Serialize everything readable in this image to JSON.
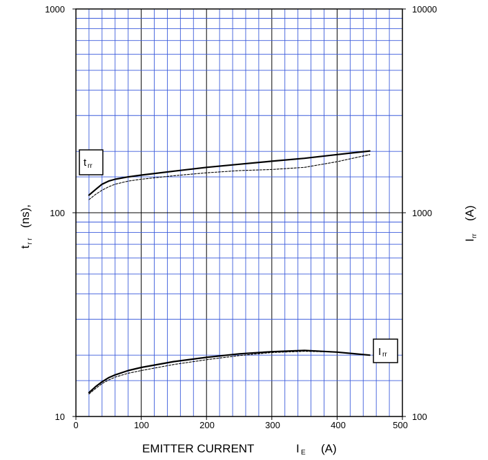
{
  "chart_data": {
    "type": "line",
    "title": "",
    "x_axis": {
      "label_main": "EMITTER CURRENT",
      "label_symbol": "I",
      "label_subscript": "E",
      "label_unit": "(A)",
      "range": [
        0,
        500
      ],
      "ticks": [
        "0",
        "100",
        "200",
        "300",
        "400",
        "500"
      ]
    },
    "y_left": {
      "label_symbol": "t",
      "label_subscript": "r r",
      "label_unit": "(ns),",
      "scale": "log",
      "range": [
        10,
        1000
      ],
      "ticks": [
        "10",
        "100",
        "1000"
      ]
    },
    "y_right": {
      "label_symbol": "I",
      "label_subscript": "rr",
      "label_unit": "(A)",
      "scale": "log",
      "range": [
        100,
        10000
      ],
      "ticks": [
        "100",
        "1000",
        "10000"
      ]
    },
    "grid": true,
    "grid_colors": {
      "major": "#000000",
      "minor": "#3b5bdb"
    },
    "annotations": {
      "trr": {
        "main": "t",
        "sub": "rr"
      },
      "irr": {
        "main": "I",
        "sub": "rr"
      }
    },
    "series": [
      {
        "axis": "left",
        "style": "solid",
        "x": [
          20,
          30,
          40,
          50,
          60,
          80,
          100,
          150,
          200,
          250,
          300,
          350,
          400,
          450
        ],
        "y": [
          122,
          130,
          138,
          143,
          146,
          150,
          153,
          160,
          167,
          173,
          179,
          185,
          193,
          201
        ]
      },
      {
        "axis": "left",
        "style": "dashed",
        "x": [
          20,
          30,
          40,
          50,
          60,
          80,
          100,
          150,
          200,
          250,
          300,
          350,
          400,
          450
        ],
        "y": [
          116,
          123,
          129,
          134,
          138,
          143,
          146,
          152,
          157,
          161,
          163,
          167,
          178,
          193
        ]
      },
      {
        "axis": "right",
        "style": "solid",
        "x": [
          20,
          30,
          40,
          50,
          60,
          80,
          100,
          150,
          200,
          250,
          300,
          350,
          400,
          450
        ],
        "y": [
          131,
          140,
          148,
          155,
          160,
          168,
          174,
          186,
          195,
          203,
          208,
          211,
          207,
          200
        ]
      },
      {
        "axis": "right",
        "style": "dashed",
        "x": [
          20,
          30,
          40,
          50,
          60,
          80,
          100,
          150,
          200,
          250,
          300,
          350,
          400,
          450
        ],
        "y": [
          129,
          137,
          145,
          151,
          156,
          163,
          168,
          180,
          190,
          199,
          206,
          209,
          207,
          200
        ]
      }
    ]
  }
}
